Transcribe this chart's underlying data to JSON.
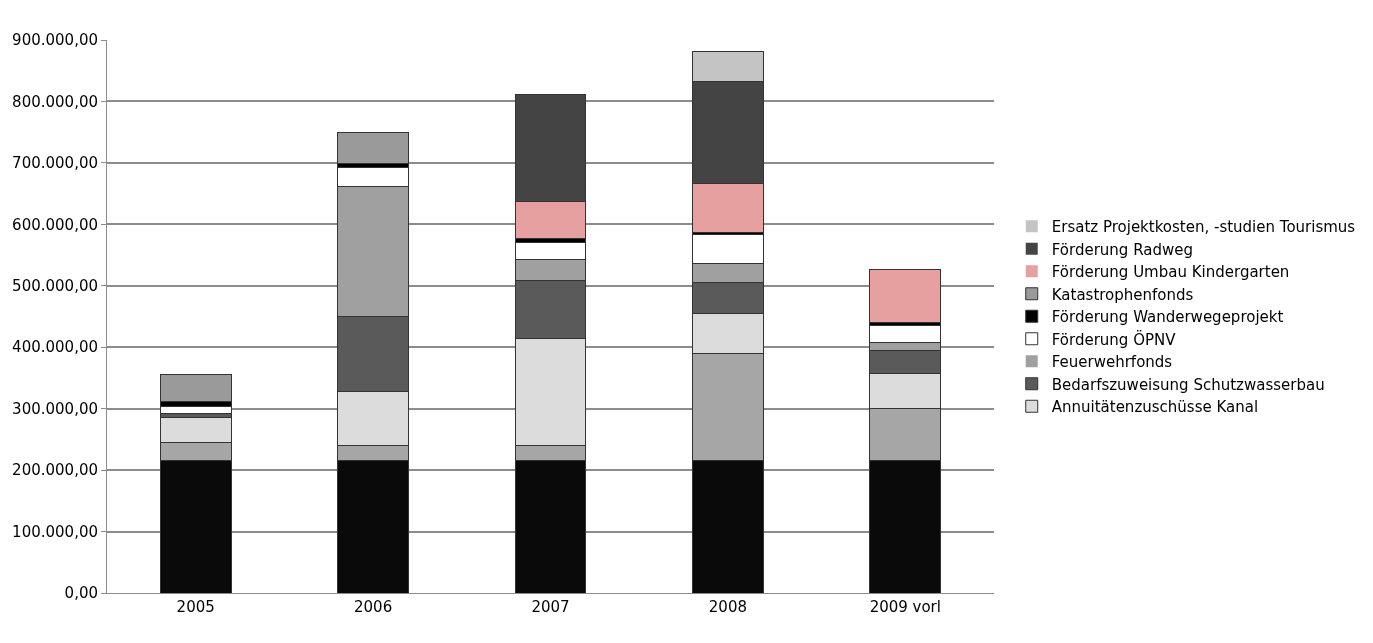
{
  "chart_data": {
    "type": "bar",
    "stacked": true,
    "categories": [
      "2005",
      "2006",
      "2007",
      "2008",
      "2009 vorl"
    ],
    "ylim": [
      0,
      900000
    ],
    "yticks": [
      {
        "value": 0,
        "label": "0,00"
      },
      {
        "value": 100000,
        "label": "100.000,00"
      },
      {
        "value": 200000,
        "label": "200.000,00"
      },
      {
        "value": 300000,
        "label": "300.000,00"
      },
      {
        "value": 400000,
        "label": "400.000,00"
      },
      {
        "value": 500000,
        "label": "500.000,00"
      },
      {
        "value": 600000,
        "label": "600.000,00"
      },
      {
        "value": 700000,
        "label": "700.000,00"
      },
      {
        "value": 800000,
        "label": "800.000,00"
      },
      {
        "value": 900000,
        "label": "900.000,00"
      }
    ],
    "grid": "y",
    "legend": "right",
    "series": [
      {
        "color": "#0a0a0a",
        "values": [
          215000,
          215000,
          215000,
          215000,
          215000
        ]
      },
      {
        "color": "#a6a6a6",
        "values": [
          30000,
          25000,
          25000,
          175000,
          85000
        ]
      },
      {
        "name": "Annuitätenzuschüsse Kanal",
        "color": "#dcdcdc",
        "values": [
          40000,
          88000,
          174000,
          65000,
          58000
        ]
      },
      {
        "name": "Bedarfszuweisung Schutzwasserbau",
        "color": "#5a5a5a",
        "values": [
          7000,
          122000,
          94000,
          51000,
          37000
        ]
      },
      {
        "name": "Feuerwehrfonds",
        "color": "#a0a0a0",
        "values": [
          0,
          211000,
          35000,
          30000,
          12000
        ]
      },
      {
        "name": "Förderung ÖPNV",
        "color": "#ffffff",
        "values": [
          11000,
          32000,
          28000,
          47000,
          28000
        ]
      },
      {
        "name": "Förderung Wanderwegeprojekt",
        "color": "#000000",
        "values": [
          8000,
          6000,
          6000,
          4000,
          5000
        ]
      },
      {
        "name": "Katastrophenfonds",
        "color": "#9a9a9a",
        "values": [
          45000,
          50000,
          0,
          0,
          0
        ]
      },
      {
        "name": "Förderung Umbau Kindergarten",
        "color": "#e6a0a0",
        "values": [
          0,
          0,
          60000,
          80000,
          86000
        ]
      },
      {
        "name": "Förderung Radweg",
        "color": "#444444",
        "values": [
          0,
          0,
          174000,
          166000,
          0
        ]
      },
      {
        "name": "Ersatz Projektkosten, -studien Tourismus",
        "color": "#c4c4c4",
        "values": [
          0,
          0,
          0,
          49000,
          0
        ]
      }
    ]
  }
}
